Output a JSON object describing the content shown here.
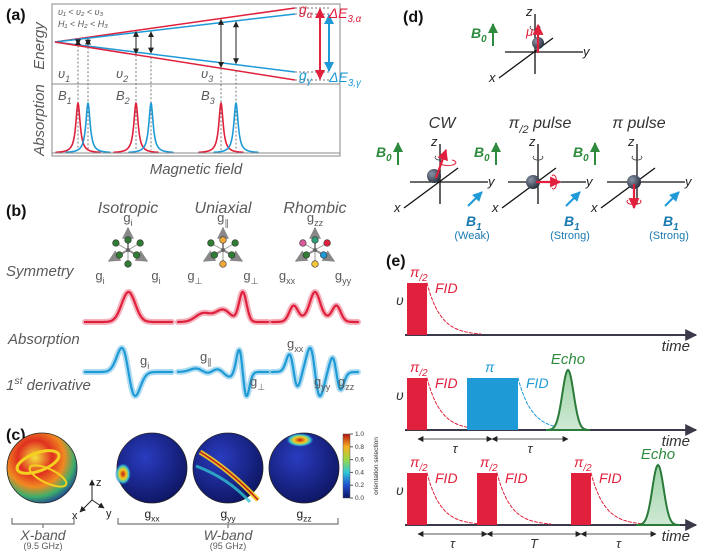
{
  "a": {
    "label": "(a)",
    "energy": "Energy",
    "absorption": "Absorption",
    "field": "Magnetic field",
    "g_alpha": {
      "main": "g",
      "sub": "α"
    },
    "g_gamma": {
      "main": "g",
      "sub": "γ"
    },
    "dE_alpha": {
      "main": "ΔE",
      "sub": "3,α"
    },
    "dE_gamma": {
      "main": "ΔE",
      "sub": "3,γ"
    },
    "nu_order": "υ₁ < υ₂ < υ₃",
    "h_order": "H₁ < H₂ < H₃",
    "nu": [
      {
        "main": "υ",
        "sub": "1"
      },
      {
        "main": "υ",
        "sub": "2"
      },
      {
        "main": "υ",
        "sub": "3"
      }
    ],
    "B": [
      {
        "main": "B",
        "sub": "1"
      },
      {
        "main": "B",
        "sub": "2"
      },
      {
        "main": "B",
        "sub": "3"
      }
    ]
  },
  "b": {
    "label": "(b)",
    "columns": [
      "Isotropic",
      "Uniaxial",
      "Rhombic"
    ],
    "rows": [
      "Symmetry",
      "Absorption",
      {
        "main": "1",
        "sup": "st",
        "rest": " derivative"
      }
    ],
    "iso_labels": [
      {
        "main": "g",
        "sub": "i"
      },
      {
        "main": "g",
        "sub": "i"
      },
      {
        "main": "g",
        "sub": "i"
      }
    ],
    "uni_labels": [
      {
        "main": "g",
        "sub": "∥"
      },
      {
        "main": "g",
        "sub": "⊥"
      },
      {
        "main": "g",
        "sub": "⊥"
      }
    ],
    "rho_labels": [
      {
        "main": "g",
        "sub": "zz"
      },
      {
        "main": "g",
        "sub": "xx"
      },
      {
        "main": "g",
        "sub": "yy"
      }
    ],
    "deriv_iso": [
      {
        "main": "g",
        "sub": "i"
      }
    ],
    "deriv_uni": [
      {
        "main": "g",
        "sub": "∥"
      },
      {
        "main": "g",
        "sub": "⊥"
      }
    ],
    "deriv_rho": [
      {
        "main": "g",
        "sub": "xx"
      },
      {
        "main": "g",
        "sub": "yy"
      },
      {
        "main": "g",
        "sub": "zz"
      }
    ]
  },
  "c": {
    "label": "(c)",
    "axes": [
      "z",
      "x",
      "y"
    ],
    "spheres": [
      {
        "main": "g",
        "sub": "xx"
      },
      {
        "main": "g",
        "sub": "yy"
      },
      {
        "main": "g",
        "sub": "zz"
      }
    ],
    "colorbar_ticks": [
      "1.0",
      "0.8",
      "0.6",
      "0.4",
      "0.2",
      "0.0"
    ],
    "colorbar_title": "orientation selection",
    "xband": "X-band",
    "xband_freq": "(9.5 GHz)",
    "wband": "W-band",
    "wband_freq": "(95 GHz)"
  },
  "d": {
    "label": "(d)",
    "axes": [
      "z",
      "y",
      "x"
    ],
    "B0": {
      "main": "B",
      "sub": "0"
    },
    "mu": "μ",
    "titles": [
      "CW",
      {
        "main": "π",
        "sub": "/2",
        "rest": " pulse"
      },
      "π pulse"
    ],
    "B1": {
      "main": "B",
      "sub": "1"
    },
    "strengths": [
      "(Weak)",
      "(Strong)",
      "(Strong)"
    ]
  },
  "e": {
    "label": "(e)",
    "pi_half": {
      "main": "π",
      "sub": "/2"
    },
    "pi": "π",
    "fid": "FID",
    "echo": "Echo",
    "nu": "υ",
    "time": "time",
    "tau": "τ",
    "T": "T"
  }
}
